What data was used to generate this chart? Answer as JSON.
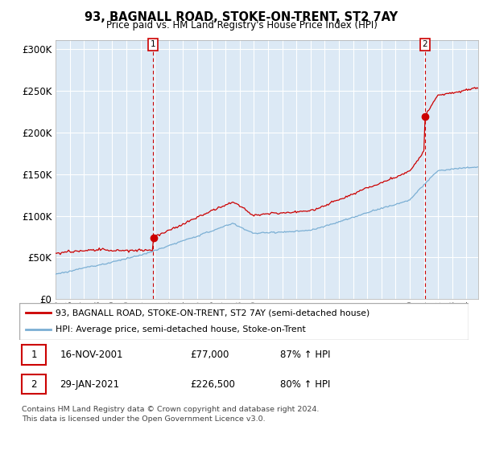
{
  "title": "93, BAGNALL ROAD, STOKE-ON-TRENT, ST2 7AY",
  "subtitle": "Price paid vs. HM Land Registry's House Price Index (HPI)",
  "ylabel_ticks": [
    "£0",
    "£50K",
    "£100K",
    "£150K",
    "£200K",
    "£250K",
    "£300K"
  ],
  "ylim": [
    0,
    310000
  ],
  "xlim_start": 1995.0,
  "xlim_end": 2024.83,
  "transaction1_date": 2001.88,
  "transaction1_price": 77000,
  "transaction1_label": "1",
  "transaction2_date": 2021.08,
  "transaction2_price": 226500,
  "transaction2_label": "2",
  "legend_line1": "93, BAGNALL ROAD, STOKE-ON-TRENT, ST2 7AY (semi-detached house)",
  "legend_line2": "HPI: Average price, semi-detached house, Stoke-on-Trent",
  "table_row1_num": "1",
  "table_row1_date": "16-NOV-2001",
  "table_row1_price": "£77,000",
  "table_row1_hpi": "87% ↑ HPI",
  "table_row2_num": "2",
  "table_row2_date": "29-JAN-2021",
  "table_row2_price": "£226,500",
  "table_row2_hpi": "80% ↑ HPI",
  "footer": "Contains HM Land Registry data © Crown copyright and database right 2024.\nThis data is licensed under the Open Government Licence v3.0.",
  "line_color_property": "#cc0000",
  "line_color_hpi": "#7bafd4",
  "dot_color_property": "#cc0000",
  "background_color": "#dce9f5",
  "grid_color": "#ffffff",
  "fig_background": "#ffffff"
}
